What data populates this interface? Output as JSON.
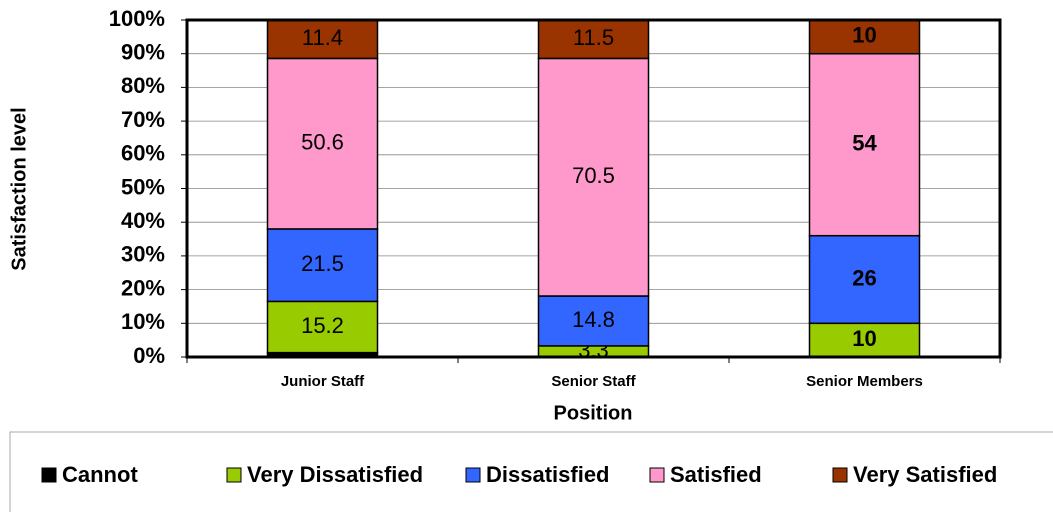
{
  "chart_data": {
    "type": "stacked_bar_100",
    "x_label": "Position",
    "y_label": "Satisfaction level",
    "categories": [
      "Junior Staff",
      "Senior Staff",
      "Senior Members"
    ],
    "series": [
      {
        "name": "Cannot",
        "color": "#000000",
        "values": [
          1.3,
          0,
          0
        ],
        "labels": false
      },
      {
        "name": "Very Dissatisfied",
        "color": "#99cc00",
        "values": [
          15.2,
          3.3,
          10
        ]
      },
      {
        "name": "Dissatisfied",
        "color": "#3366ff",
        "values": [
          21.5,
          14.8,
          26
        ]
      },
      {
        "name": "Satisfied",
        "color": "#ff99cc",
        "values": [
          50.6,
          70.5,
          54
        ]
      },
      {
        "name": "Very Satisfied",
        "color": "#993300",
        "values": [
          11.4,
          11.5,
          10
        ]
      }
    ],
    "ylim": [
      0,
      100
    ],
    "yticks": [
      {
        "value": 0,
        "label": "0%"
      },
      {
        "value": 10,
        "label": "10%"
      },
      {
        "value": 20,
        "label": "20%"
      },
      {
        "value": 30,
        "label": "30%"
      },
      {
        "value": 40,
        "label": "40%"
      },
      {
        "value": 50,
        "label": "50%"
      },
      {
        "value": 60,
        "label": "60%"
      },
      {
        "value": 70,
        "label": "70%"
      },
      {
        "value": 80,
        "label": "80%"
      },
      {
        "value": 90,
        "label": "90%"
      },
      {
        "value": 100,
        "label": "100%"
      }
    ],
    "grid": true,
    "legend": "bottom"
  }
}
